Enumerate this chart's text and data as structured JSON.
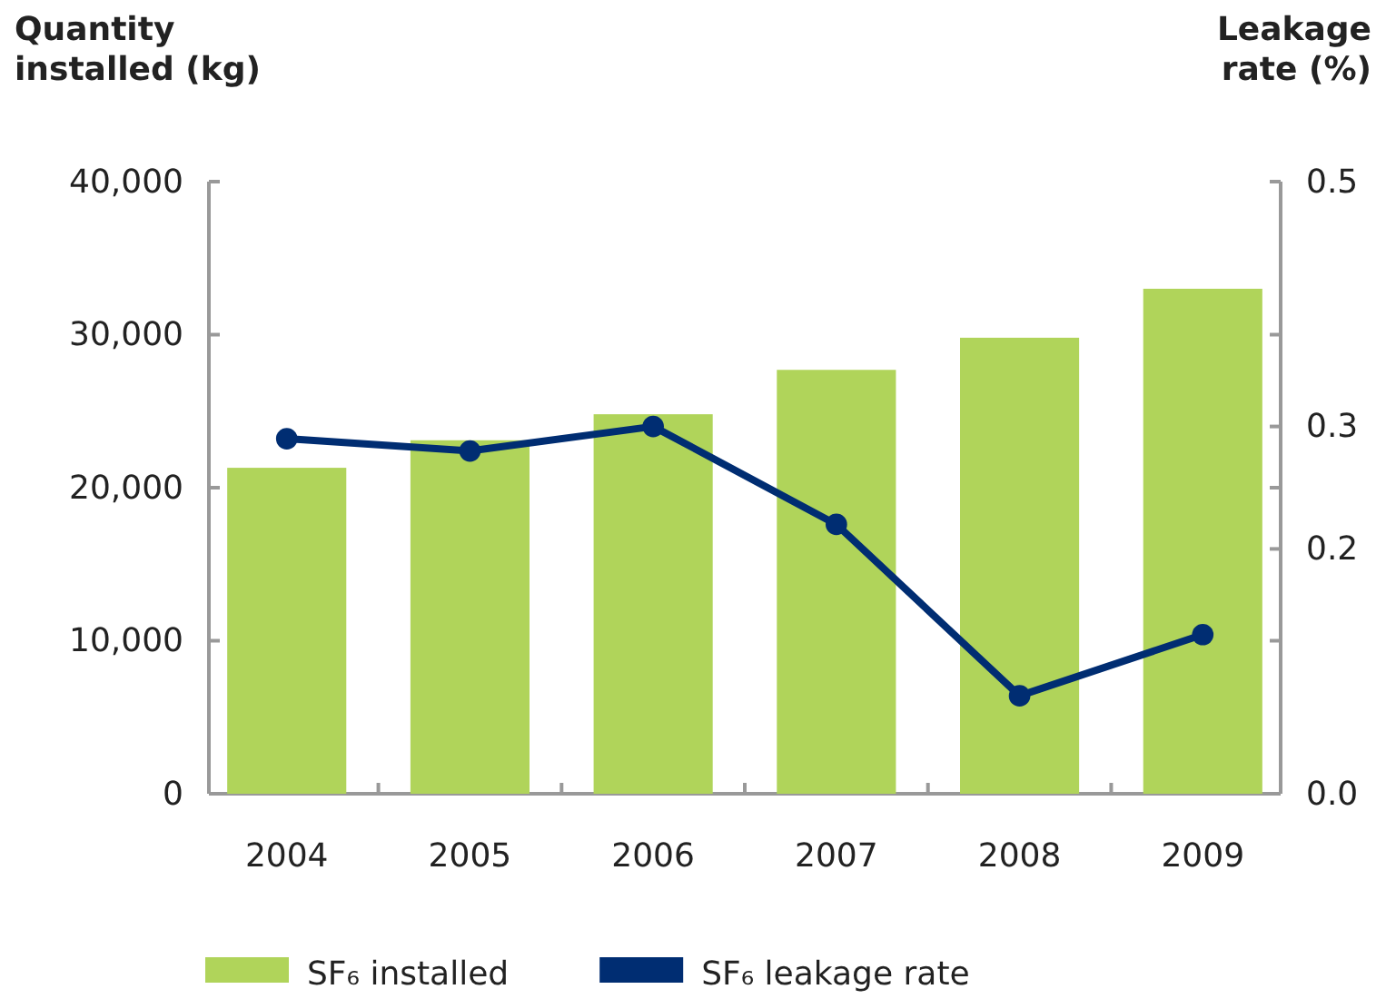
{
  "chart_data": {
    "type": "bar",
    "categories": [
      "2004",
      "2005",
      "2006",
      "2007",
      "2008",
      "2009"
    ],
    "ylabel": "Quantity\ninstalled  (kg)",
    "y2label": "Leakage\nrate  (%)",
    "ylim": [
      0,
      40000
    ],
    "yticks": [
      {
        "value": 0,
        "label": "0"
      },
      {
        "value": 10000,
        "label": "10,000"
      },
      {
        "value": 20000,
        "label": "20,000"
      },
      {
        "value": 30000,
        "label": "30,000"
      },
      {
        "value": 40000,
        "label": "40,000"
      }
    ],
    "y2lim": [
      0,
      0.5
    ],
    "y2ticks": [
      {
        "value": 0,
        "label": "0.0"
      },
      {
        "value": 0.125,
        "label": null
      },
      {
        "value": 0.2,
        "label": "0.2"
      },
      {
        "value": 0.25,
        "label": null
      },
      {
        "value": 0.3,
        "label": "0.3"
      },
      {
        "value": 0.375,
        "label": null
      },
      {
        "value": 0.5,
        "label": "0.5"
      }
    ],
    "series": [
      {
        "name": "SF₆ installed",
        "color": "#b0d45a",
        "values": [
          21300,
          23100,
          24800,
          27700,
          29800,
          33000
        ]
      },
      {
        "name": "SF₆ leakage rate",
        "type": "line",
        "axis": "y2",
        "color": "#002d72",
        "values": [
          0.29,
          0.28,
          0.3,
          0.22,
          0.08,
          0.13
        ]
      }
    ],
    "marker": "circle",
    "legend": "bottom",
    "grid": false
  }
}
